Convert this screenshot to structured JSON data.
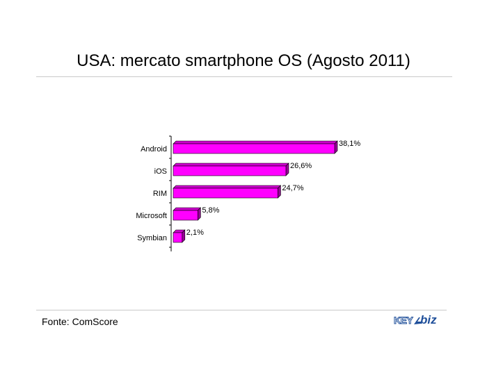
{
  "title": "USA: mercato smartphone OS (Agosto 2011)",
  "source": "Fonte: ComScore",
  "logo": {
    "text_key": "KEY",
    "text_biz": "biz",
    "color": "#1f4f9a"
  },
  "chart_data": {
    "type": "bar",
    "orientation": "horizontal",
    "categories": [
      "Android",
      "iOS",
      "RIM",
      "Microsoft",
      "Symbian"
    ],
    "values": [
      38.1,
      26.6,
      24.7,
      5.8,
      2.1
    ],
    "data_labels": [
      "38,1%",
      "26,6%",
      "24,7%",
      "5,8%",
      "2,1%"
    ],
    "xlim": [
      0,
      38.1
    ],
    "grid": false,
    "legend": "none",
    "bar_color": "#ff00ff",
    "bar_3d": true
  }
}
